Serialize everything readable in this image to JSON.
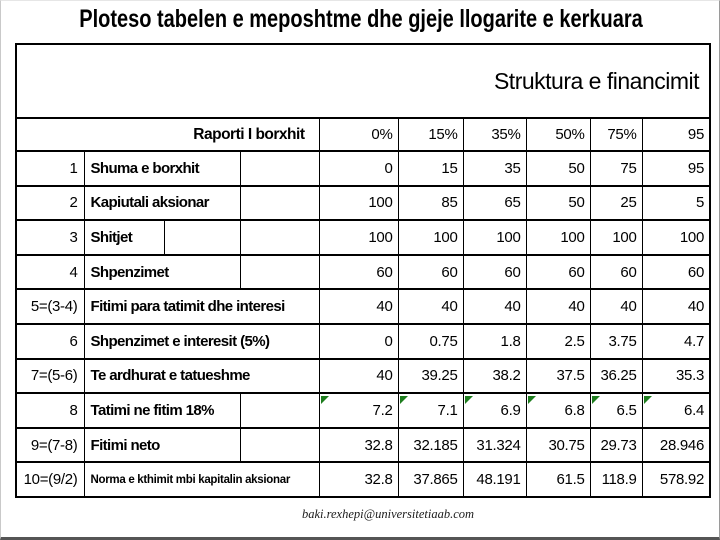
{
  "slide": {
    "title": "Ploteso tabelen e meposhtme dhe gjeje llogarite e kerkuara",
    "footer_email": "baki.rexhepi@universitetiaab.com"
  },
  "table": {
    "header": "Struktura e financimit",
    "debt_ratio_row": {
      "label": "Raporti I borxhit",
      "values": [
        "0%",
        "15%",
        "35%",
        "50%",
        "75%",
        "95"
      ]
    },
    "rows": [
      {
        "num": "1",
        "label": "Shuma e borxhit",
        "layout": "mid",
        "values": [
          "0",
          "15",
          "35",
          "50",
          "75",
          "95"
        ]
      },
      {
        "num": "2",
        "label": "Kapiutali aksionar",
        "layout": "mid",
        "values": [
          "100",
          "85",
          "65",
          "50",
          "25",
          "5"
        ]
      },
      {
        "num": "3",
        "label": "Shitjet",
        "layout": "split",
        "values": [
          "100",
          "100",
          "100",
          "100",
          "100",
          "100"
        ]
      },
      {
        "num": "4",
        "label": "Shpenzimet",
        "layout": "mid",
        "values": [
          "60",
          "60",
          "60",
          "60",
          "60",
          "60"
        ]
      },
      {
        "num": "5=(3-4)",
        "label": "Fitimi para tatimit dhe interesi",
        "layout": "full",
        "values": [
          "40",
          "40",
          "40",
          "40",
          "40",
          "40"
        ]
      },
      {
        "num": "6",
        "label": "Shpenzimet e interesit (5%)",
        "layout": "full",
        "values": [
          "0",
          "0.75",
          "1.8",
          "2.5",
          "3.75",
          "4.7"
        ]
      },
      {
        "num": "7=(5-6)",
        "label": "Te ardhurat e tatueshme",
        "layout": "full",
        "values": [
          "40",
          "39.25",
          "38.2",
          "37.5",
          "36.25",
          "35.3"
        ]
      },
      {
        "num": "8",
        "label": "Tatimi ne fitim 18%",
        "layout": "mid",
        "flagged": true,
        "values": [
          "7.2",
          "7.1",
          "6.9",
          "6.8",
          "6.5",
          "6.4"
        ]
      },
      {
        "num": "9=(7-8)",
        "label": "Fitimi neto",
        "layout": "mid",
        "values": [
          "32.8",
          "32.185",
          "31.324",
          "30.75",
          "29.73",
          "28.946"
        ]
      },
      {
        "num": "10=(9/2)",
        "label": "Norma e kthimit mbi kapitalin aksionar",
        "layout": "full",
        "small": true,
        "values": [
          "32.8",
          "37.865",
          "48.191",
          "61.5",
          "118.9",
          "578.92"
        ]
      }
    ],
    "flag_color": "#1e7d1e"
  }
}
